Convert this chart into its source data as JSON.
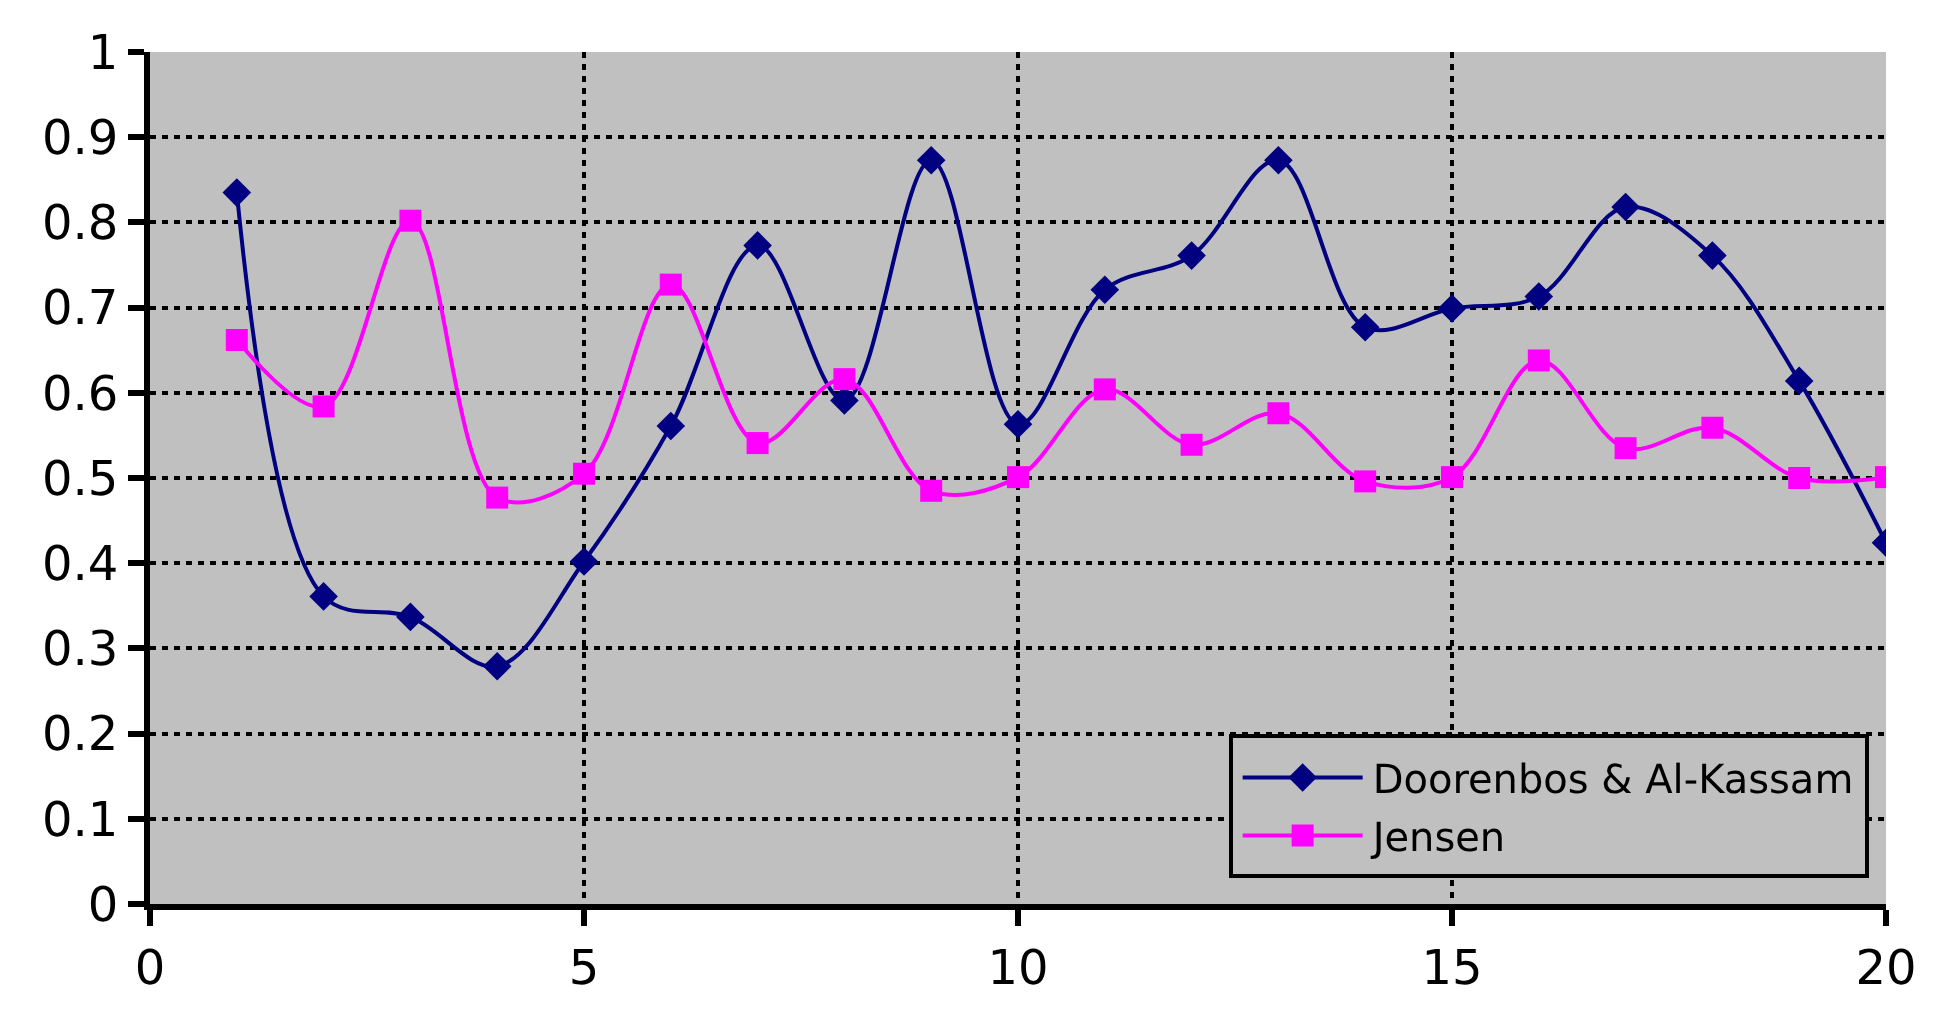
{
  "chart_data": {
    "type": "line",
    "x": [
      1,
      2,
      3,
      4,
      5,
      6,
      7,
      8,
      9,
      10,
      11,
      12,
      13,
      14,
      15,
      16,
      17,
      18,
      19,
      20
    ],
    "series": [
      {
        "name": "Doorenbos & Al-Kassam",
        "color": "#000080",
        "marker": "diamond",
        "values": [
          0.835,
          0.361,
          0.337,
          0.279,
          0.402,
          0.561,
          0.773,
          0.591,
          0.873,
          0.563,
          0.721,
          0.761,
          0.873,
          0.677,
          0.699,
          0.713,
          0.818,
          0.761,
          0.614,
          0.424
        ]
      },
      {
        "name": "Jensen",
        "color": "#ff00ff",
        "marker": "square",
        "values": [
          0.662,
          0.584,
          0.802,
          0.477,
          0.505,
          0.727,
          0.541,
          0.616,
          0.485,
          0.501,
          0.604,
          0.539,
          0.576,
          0.496,
          0.501,
          0.638,
          0.535,
          0.559,
          0.5,
          0.501
        ]
      }
    ],
    "xlim": [
      0,
      20
    ],
    "xticks": [
      0,
      5,
      10,
      15,
      20
    ],
    "ylim": [
      0,
      1
    ],
    "yticks": [
      0,
      0.1,
      0.2,
      0.3,
      0.4,
      0.5,
      0.6,
      0.7,
      0.8,
      0.9,
      1
    ],
    "grid": true,
    "legend": "bottom right",
    "line_style": "solid"
  }
}
